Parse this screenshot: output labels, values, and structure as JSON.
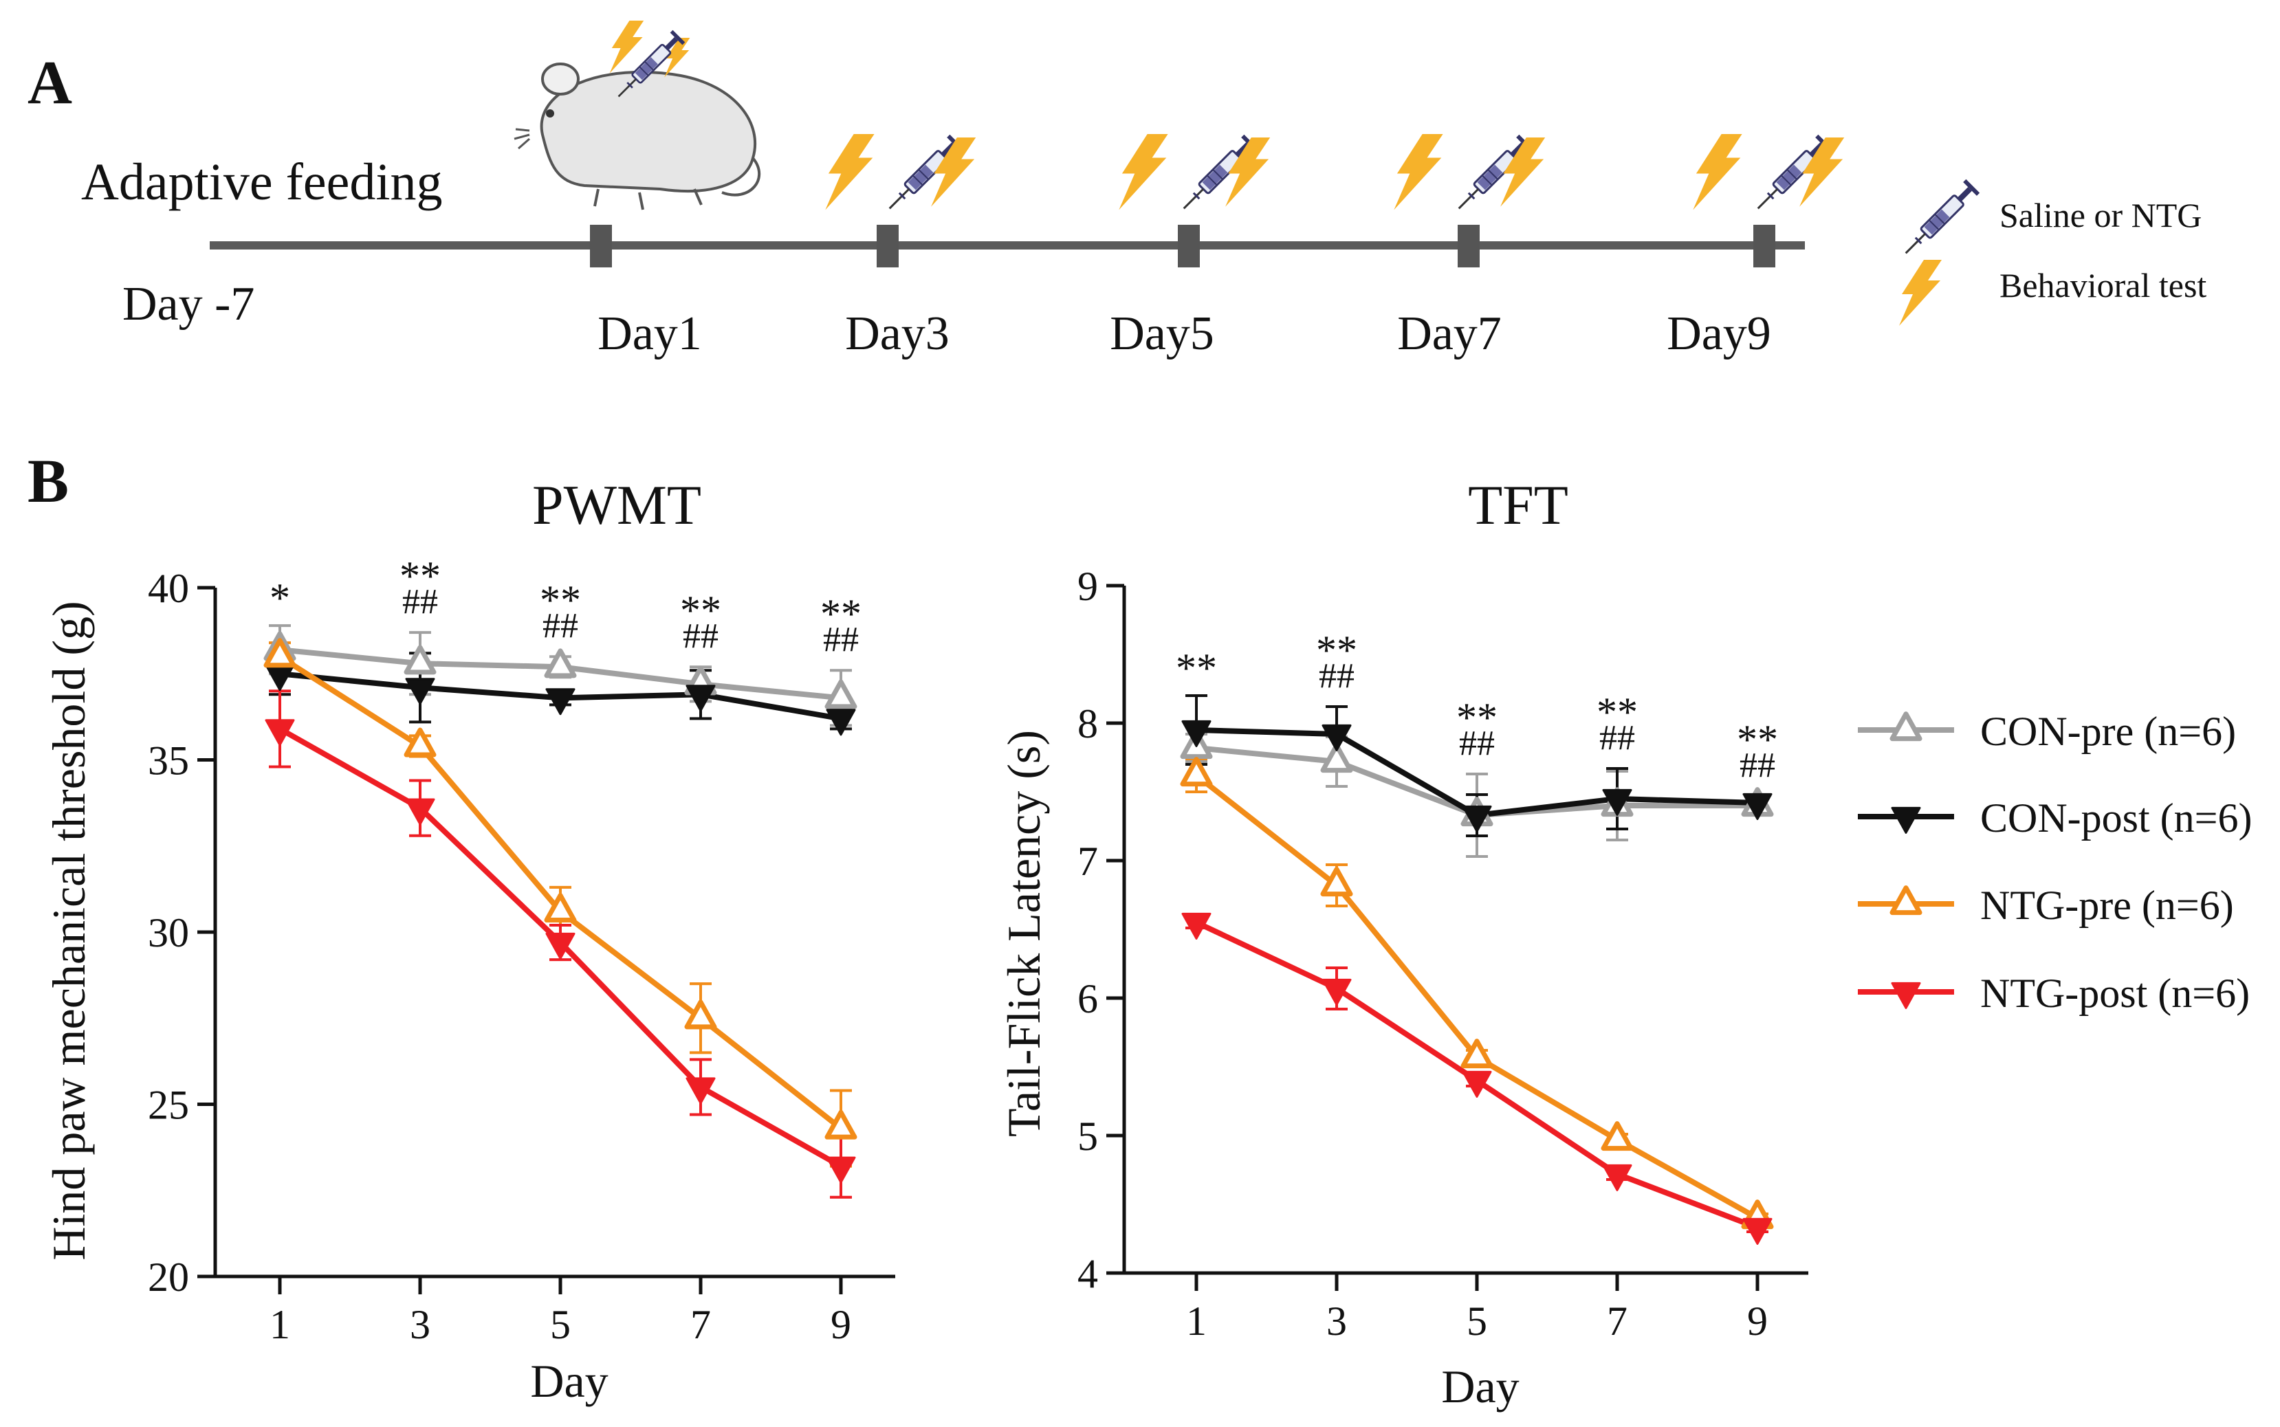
{
  "panel_a": {
    "letter": "A",
    "title": "Adaptive feeding",
    "start_label": "Day -7",
    "day_labels": [
      "Day1",
      "Day3",
      "Day5",
      "Day7",
      "Day9"
    ],
    "legend": {
      "injection": "Saline or NTG",
      "behavior": "Behavioral test"
    },
    "icons": [
      "mouse-icon",
      "syringe-icon",
      "lightning-icon"
    ],
    "colors": {
      "timeline": "#5a5a5a",
      "lightning": "#f6b22a",
      "syringe": "#4a4a7a"
    }
  },
  "panel_b": {
    "letter": "B",
    "legend": [
      "CON-pre (n=6)",
      "CON-post (n=6)",
      "NTG-pre (n=6)",
      "NTG-post (n=6)"
    ],
    "series_colors": {
      "CON-pre": "#a0a0a0",
      "CON-post": "#111111",
      "NTG-pre": "#f28c18",
      "NTG-post": "#ee1e24"
    }
  },
  "chart_data": [
    {
      "type": "line",
      "title": "PWMT",
      "xlabel": "Day",
      "ylabel": "Hind paw mechanical threshold (g)",
      "x": [
        1,
        3,
        5,
        7,
        9
      ],
      "xticks": [
        "1",
        "3",
        "5",
        "7",
        "9"
      ],
      "yticks": [
        "20",
        "25",
        "30",
        "35",
        "40"
      ],
      "xlim": [
        0,
        10
      ],
      "ylim": [
        20,
        40
      ],
      "series": [
        {
          "name": "CON-pre",
          "marker": "triangle-up-open",
          "values": [
            38.2,
            37.8,
            37.7,
            37.2,
            36.8
          ],
          "err": [
            0.7,
            0.9,
            0.3,
            0.5,
            0.8
          ]
        },
        {
          "name": "CON-post",
          "marker": "triangle-down-filled",
          "values": [
            37.5,
            37.1,
            36.8,
            36.9,
            36.2
          ],
          "err": [
            0.6,
            1.0,
            0.2,
            0.7,
            0.3
          ]
        },
        {
          "name": "NTG-pre",
          "marker": "triangle-up-open",
          "values": [
            38.0,
            35.4,
            30.6,
            27.5,
            24.3
          ],
          "err": [
            0.4,
            0.3,
            0.7,
            1.0,
            1.1
          ]
        },
        {
          "name": "NTG-post",
          "marker": "triangle-down-filled",
          "values": [
            35.9,
            33.6,
            29.7,
            25.5,
            23.2
          ],
          "err": [
            1.1,
            0.8,
            0.5,
            0.8,
            0.9
          ]
        }
      ],
      "annotations": [
        {
          "x": 1,
          "line1": "*",
          "line2": ""
        },
        {
          "x": 3,
          "line1": "**",
          "line2": "##"
        },
        {
          "x": 5,
          "line1": "**",
          "line2": "##"
        },
        {
          "x": 7,
          "line1": "**",
          "line2": "##"
        },
        {
          "x": 9,
          "line1": "**",
          "line2": "##"
        }
      ]
    },
    {
      "type": "line",
      "title": "TFT",
      "xlabel": "Day",
      "ylabel": "Tail-Flick Latency (s)",
      "x": [
        1,
        3,
        5,
        7,
        9
      ],
      "xticks": [
        "1",
        "3",
        "5",
        "7",
        "9"
      ],
      "yticks": [
        "4",
        "5",
        "6",
        "7",
        "8",
        "9"
      ],
      "xlim": [
        0,
        10
      ],
      "ylim": [
        4,
        9
      ],
      "series": [
        {
          "name": "CON-pre",
          "marker": "triangle-up-open",
          "values": [
            7.82,
            7.72,
            7.33,
            7.4,
            7.4
          ],
          "err": [
            0.1,
            0.18,
            0.3,
            0.25,
            0.05
          ]
        },
        {
          "name": "CON-post",
          "marker": "triangle-down-filled",
          "values": [
            7.95,
            7.92,
            7.33,
            7.45,
            7.42
          ],
          "err": [
            0.25,
            0.2,
            0.15,
            0.22,
            0.05
          ]
        },
        {
          "name": "NTG-pre",
          "marker": "triangle-up-open",
          "values": [
            7.62,
            6.82,
            5.57,
            4.97,
            4.4
          ],
          "err": [
            0.12,
            0.15,
            0.05,
            0.04,
            0.03
          ]
        },
        {
          "name": "NTG-post",
          "marker": "triangle-down-filled",
          "values": [
            6.55,
            6.07,
            5.4,
            4.72,
            4.33
          ],
          "err": [
            0.04,
            0.15,
            0.04,
            0.04,
            0.03
          ]
        }
      ],
      "annotations": [
        {
          "x": 1,
          "line1": "**",
          "line2": ""
        },
        {
          "x": 3,
          "line1": "**",
          "line2": "##"
        },
        {
          "x": 5,
          "line1": "**",
          "line2": "##"
        },
        {
          "x": 7,
          "line1": "**",
          "line2": "##"
        },
        {
          "x": 9,
          "line1": "**",
          "line2": "##"
        }
      ]
    }
  ]
}
